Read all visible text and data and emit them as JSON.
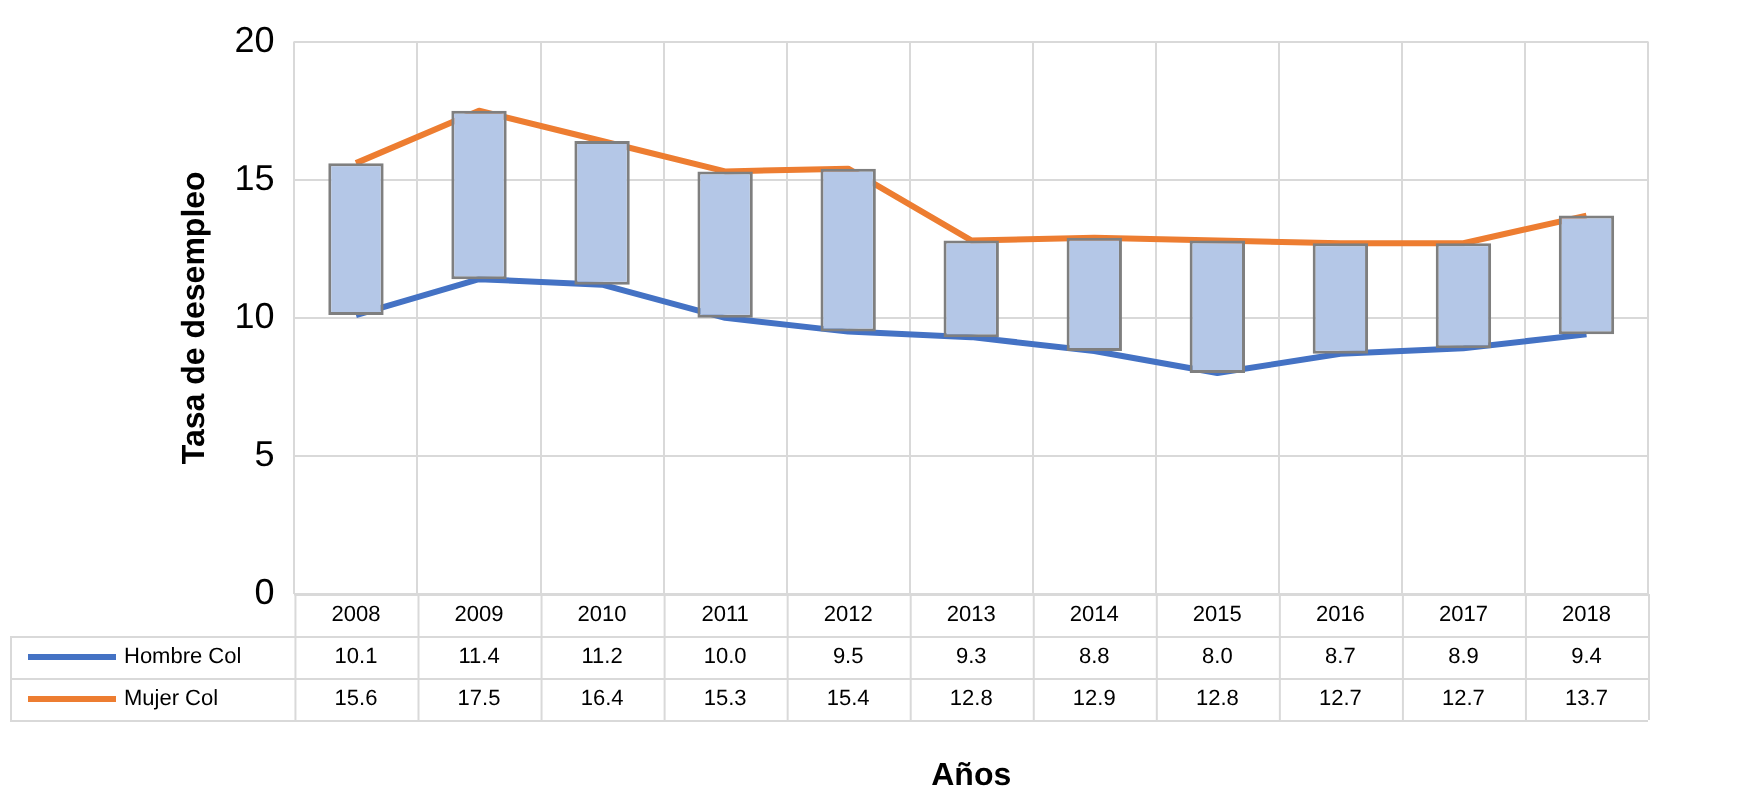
{
  "chart_data": {
    "type": "line",
    "xlabel": "Años",
    "ylabel": "Tasa de desempleo",
    "categories": [
      "2008",
      "2009",
      "2010",
      "2011",
      "2012",
      "2013",
      "2014",
      "2015",
      "2016",
      "2017",
      "2018"
    ],
    "series": [
      {
        "type": "bar",
        "color": "#b4c7e7",
        "base": [
          10.1,
          11.4,
          11.2,
          10.0,
          9.5,
          9.3,
          8.8,
          8.0,
          8.7,
          8.9,
          9.4
        ],
        "values": [
          5.5,
          6.1,
          5.2,
          5.3,
          5.9,
          3.5,
          4.1,
          4.8,
          4.0,
          3.8,
          4.3
        ]
      },
      {
        "name": "Hombre Col",
        "color": "#4472c4",
        "values": [
          10.1,
          11.4,
          11.2,
          10.0,
          9.5,
          9.3,
          8.8,
          8.0,
          8.7,
          8.9,
          9.4
        ],
        "value_labels": [
          "10.1",
          "11.4",
          "11.2",
          "10.0",
          "9.5",
          "9.3",
          "8.8",
          "8.0",
          "8.7",
          "8.9",
          "9.4"
        ]
      },
      {
        "name": "Mujer Col",
        "color": "#ed7d31",
        "values": [
          15.6,
          17.5,
          16.4,
          15.3,
          15.4,
          12.8,
          12.9,
          12.8,
          12.7,
          12.7,
          13.7
        ],
        "value_labels": [
          "15.6",
          "17.5",
          "16.4",
          "15.3",
          "15.4",
          "12.8",
          "12.9",
          "12.8",
          "12.7",
          "12.7",
          "13.7"
        ]
      }
    ],
    "ylim": [
      0,
      20
    ],
    "yticks": [
      0,
      5,
      10,
      15,
      20
    ],
    "grid": true,
    "legend": "bottom",
    "marker": "none"
  }
}
